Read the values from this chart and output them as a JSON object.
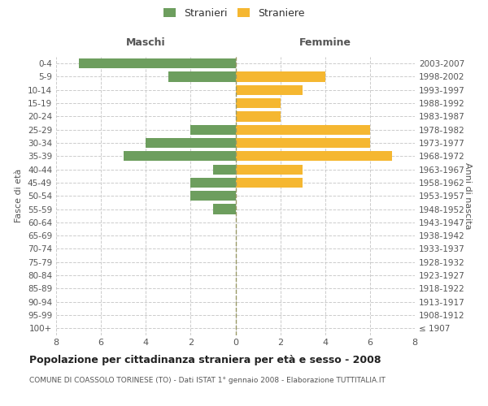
{
  "age_groups": [
    "100+",
    "95-99",
    "90-94",
    "85-89",
    "80-84",
    "75-79",
    "70-74",
    "65-69",
    "60-64",
    "55-59",
    "50-54",
    "45-49",
    "40-44",
    "35-39",
    "30-34",
    "25-29",
    "20-24",
    "15-19",
    "10-14",
    "5-9",
    "0-4"
  ],
  "birth_years": [
    "≤ 1907",
    "1908-1912",
    "1913-1917",
    "1918-1922",
    "1923-1927",
    "1928-1932",
    "1933-1937",
    "1938-1942",
    "1943-1947",
    "1948-1952",
    "1953-1957",
    "1958-1962",
    "1963-1967",
    "1968-1972",
    "1973-1977",
    "1978-1982",
    "1983-1987",
    "1988-1992",
    "1993-1997",
    "1998-2002",
    "2003-2007"
  ],
  "males": [
    0,
    0,
    0,
    0,
    0,
    0,
    0,
    0,
    0,
    1,
    2,
    2,
    1,
    5,
    4,
    2,
    0,
    0,
    0,
    3,
    7
  ],
  "females": [
    0,
    0,
    0,
    0,
    0,
    0,
    0,
    0,
    0,
    0,
    0,
    3,
    3,
    7,
    6,
    6,
    2,
    2,
    3,
    4,
    0
  ],
  "male_color": "#6d9e5e",
  "female_color": "#f5b731",
  "center_line_color": "#999966",
  "grid_color": "#cccccc",
  "background_color": "#ffffff",
  "title": "Popolazione per cittadinanza straniera per età e sesso - 2008",
  "subtitle": "COMUNE DI COASSOLO TORINESE (TO) - Dati ISTAT 1° gennaio 2008 - Elaborazione TUTTITALIA.IT",
  "ylabel_left": "Fasce di età",
  "ylabel_right": "Anni di nascita",
  "xlabel_left": "Maschi",
  "xlabel_right": "Femmine",
  "legend_male": "Stranieri",
  "legend_female": "Straniere",
  "xlim": 8,
  "bar_height": 0.75
}
